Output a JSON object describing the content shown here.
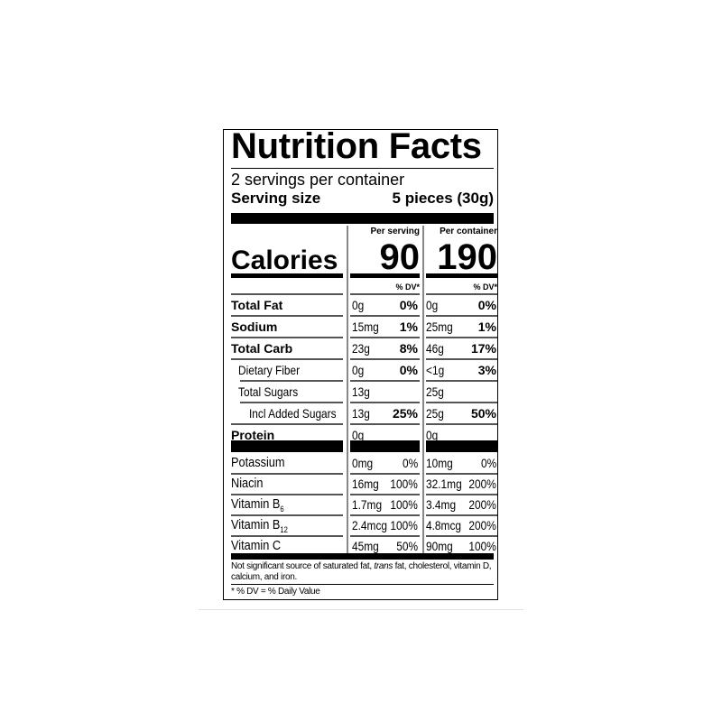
{
  "title": "Nutrition Facts",
  "servings_per_container": "2 servings per container",
  "serving_size_label": "Serving size",
  "serving_size_value": "5 pieces (30g)",
  "per_serving_label": "Per serving",
  "per_container_label": "Per container",
  "calories_label": "Calories",
  "calories_per_serving": "90",
  "calories_per_container": "190",
  "dv_header": "% DV*",
  "nutrients": [
    {
      "name": "Total Fat",
      "bold": true,
      "indent": 0,
      "s_amt": "0g",
      "s_dv": "0%",
      "c_amt": "0g",
      "c_dv": "0%"
    },
    {
      "name": "Sodium",
      "bold": true,
      "indent": 0,
      "s_amt": "15mg",
      "s_dv": "1%",
      "c_amt": "25mg",
      "c_dv": "1%"
    },
    {
      "name": "Total Carb",
      "bold": true,
      "indent": 0,
      "s_amt": "23g",
      "s_dv": "8%",
      "c_amt": "46g",
      "c_dv": "17%"
    },
    {
      "name": "Dietary Fiber",
      "bold": false,
      "indent": 1,
      "s_amt": "0g",
      "s_dv": "0%",
      "c_amt": "<1g",
      "c_dv": "3%"
    },
    {
      "name": "Total Sugars",
      "bold": false,
      "indent": 1,
      "s_amt": "13g",
      "s_dv": "",
      "c_amt": "25g",
      "c_dv": ""
    },
    {
      "name": "Incl Added Sugars",
      "bold": false,
      "indent": 2,
      "s_amt": "13g",
      "s_dv": "25%",
      "c_amt": "25g",
      "c_dv": "50%"
    },
    {
      "name": "Protein",
      "bold": true,
      "indent": 0,
      "s_amt": "0g",
      "s_dv": "",
      "c_amt": "0g",
      "c_dv": ""
    }
  ],
  "vitamins": [
    {
      "name": "Potassium",
      "sub": "",
      "s_amt": "0mg",
      "s_dv": "0%",
      "c_amt": "10mg",
      "c_dv": "0%"
    },
    {
      "name": "Niacin",
      "sub": "",
      "s_amt": "16mg",
      "s_dv": "100%",
      "c_amt": "32.1mg",
      "c_dv": "200%"
    },
    {
      "name": "Vitamin B",
      "sub": "6",
      "s_amt": "1.7mg",
      "s_dv": "100%",
      "c_amt": "3.4mg",
      "c_dv": "200%"
    },
    {
      "name": "Vitamin B",
      "sub": "12",
      "s_amt": "2.4mcg",
      "s_dv": "100%",
      "c_amt": "4.8mcg",
      "c_dv": "200%"
    },
    {
      "name": "Vitamin C",
      "sub": "",
      "s_amt": "45mg",
      "s_dv": "50%",
      "c_amt": "90mg",
      "c_dv": "100%"
    }
  ],
  "footnote_prefix": "Not significant source of saturated fat, ",
  "footnote_italic": "trans",
  "footnote_suffix": " fat, cholesterol, vitamin D, calcium, and iron.",
  "dv_note": "* % DV = % Daily Value"
}
